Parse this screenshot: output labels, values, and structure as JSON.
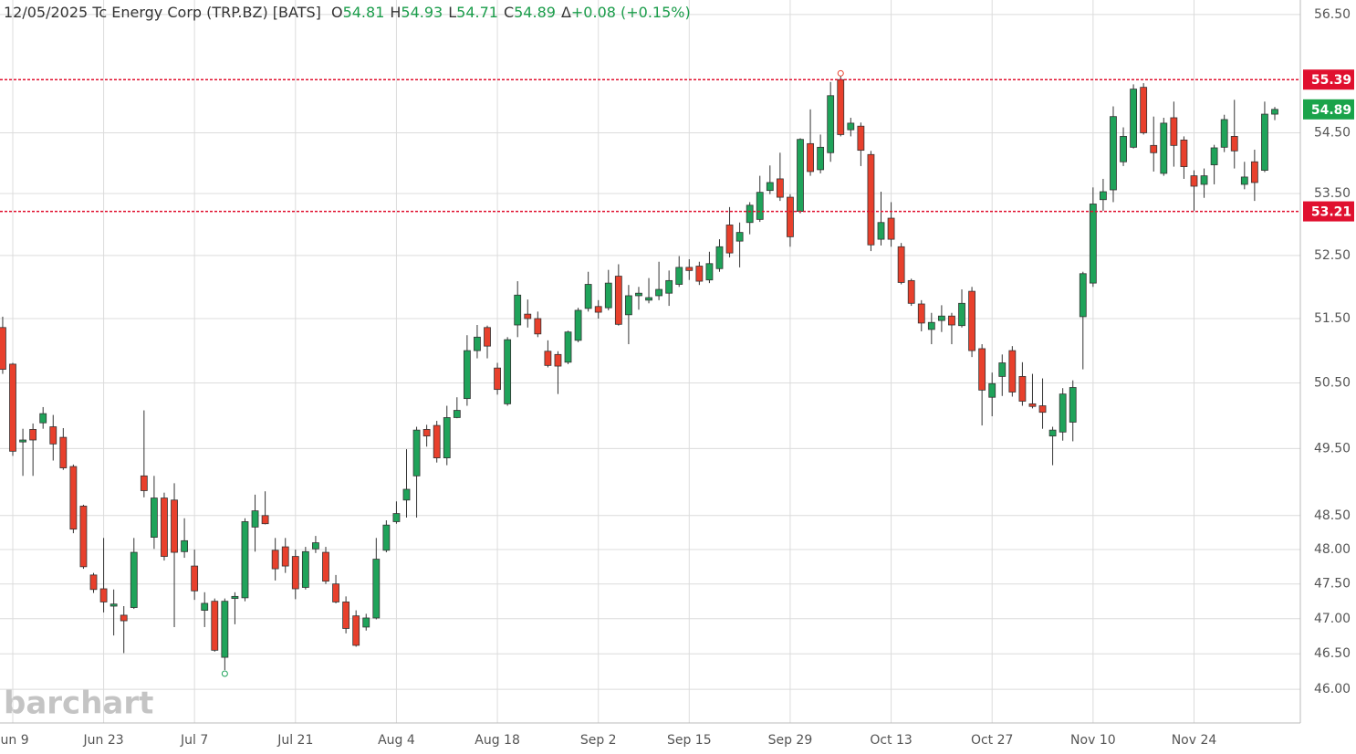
{
  "header": {
    "date": "12/05/2025",
    "name": "Tc Energy Corp (TRP.BZ) [BATS]",
    "fields": [
      {
        "key": "O",
        "value": 54.81
      },
      {
        "key": "H",
        "value": 54.93
      },
      {
        "key": "L",
        "value": 54.71
      },
      {
        "key": "C",
        "value": 54.89
      },
      {
        "key": "Δ",
        "value": "+0.08 (+0.15%)"
      }
    ]
  },
  "watermark": "barchart",
  "chart_data": {
    "type": "candlestick",
    "log_scale": true,
    "grid": true,
    "up_color": "#1fa35a",
    "down_color": "#e8402c",
    "categories": [
      null,
      "Jun 9",
      null,
      null,
      null,
      null,
      null,
      null,
      null,
      null,
      "Jun 23",
      null,
      null,
      null,
      null,
      null,
      null,
      null,
      null,
      "Jul 7",
      null,
      null,
      null,
      null,
      null,
      null,
      null,
      null,
      null,
      "Jul 21",
      null,
      null,
      null,
      null,
      null,
      null,
      null,
      null,
      null,
      "Aug 4",
      null,
      null,
      null,
      null,
      null,
      null,
      null,
      null,
      null,
      "Aug 18",
      null,
      null,
      null,
      null,
      null,
      null,
      null,
      null,
      null,
      "Sep 2",
      null,
      null,
      null,
      null,
      null,
      null,
      null,
      null,
      "Sep 15",
      null,
      null,
      null,
      null,
      null,
      null,
      null,
      null,
      null,
      "Sep 29",
      null,
      null,
      null,
      null,
      null,
      null,
      null,
      null,
      null,
      "Oct 13",
      null,
      null,
      null,
      null,
      null,
      null,
      null,
      null,
      null,
      "Oct 27",
      null,
      null,
      null,
      null,
      null,
      null,
      null,
      null,
      null,
      "Nov 10",
      null,
      null,
      null,
      null,
      null,
      null,
      null,
      null,
      null,
      "Nov 24",
      null,
      null,
      null,
      null,
      null,
      null,
      null,
      null
    ],
    "open": [
      51.36,
      50.79,
      49.6,
      49.79,
      49.89,
      49.83,
      49.67,
      49.23,
      48.64,
      47.63,
      47.43,
      47.18,
      47.05,
      47.16,
      49.09,
      48.18,
      48.76,
      48.73,
      47.97,
      47.76,
      47.12,
      47.25,
      46.45,
      47.29,
      47.3,
      48.33,
      48.5,
      47.99,
      48.04,
      47.9,
      47.45,
      48.01,
      47.96,
      47.5,
      47.24,
      47.04,
      46.88,
      47.01,
      47.99,
      48.41,
      48.73,
      49.09,
      49.79,
      49.85,
      49.36,
      49.97,
      50.26,
      51.0,
      51.36,
      50.73,
      50.18,
      51.4,
      51.57,
      51.5,
      50.99,
      50.94,
      50.82,
      51.16,
      51.66,
      51.69,
      51.67,
      52.17,
      51.56,
      51.86,
      51.79,
      51.86,
      51.9,
      52.04,
      52.31,
      52.33,
      52.11,
      52.29,
      52.99,
      52.73,
      53.03,
      53.08,
      53.55,
      53.74,
      53.44,
      53.21,
      54.32,
      53.89,
      54.17,
      55.39,
      54.55,
      54.61,
      54.14,
      52.76,
      53.1,
      52.64,
      52.1,
      51.73,
      51.33,
      51.47,
      51.54,
      51.39,
      51.93,
      51.03,
      50.28,
      50.6,
      51.0,
      50.6,
      50.18,
      50.15,
      49.69,
      49.75,
      49.9,
      51.53,
      52.06,
      53.4,
      53.56,
      54.02,
      54.26,
      55.26,
      54.29,
      53.83,
      54.75,
      54.38,
      53.79,
      53.65,
      53.97,
      54.26,
      54.44,
      53.65,
      54.02,
      53.88,
      54.81
    ],
    "high": [
      51.53,
      50.81,
      49.8,
      49.88,
      50.13,
      50.01,
      49.81,
      49.26,
      48.66,
      47.66,
      48.17,
      47.42,
      47.18,
      48.17,
      50.08,
      49.09,
      48.84,
      48.98,
      48.46,
      48.0,
      47.38,
      47.29,
      47.29,
      47.38,
      48.46,
      48.81,
      48.86,
      48.17,
      48.17,
      48.0,
      48.04,
      48.2,
      48.04,
      47.63,
      47.32,
      47.12,
      47.07,
      48.17,
      48.43,
      48.71,
      49.49,
      49.83,
      49.86,
      49.92,
      50.15,
      50.28,
      51.24,
      51.4,
      51.39,
      50.81,
      51.21,
      52.09,
      51.8,
      51.61,
      51.16,
      50.99,
      51.31,
      51.67,
      52.24,
      51.79,
      52.27,
      52.36,
      52.03,
      52.0,
      52.14,
      52.4,
      52.26,
      52.49,
      52.44,
      52.4,
      52.56,
      52.76,
      53.28,
      53.03,
      53.36,
      53.79,
      53.96,
      54.17,
      53.49,
      54.41,
      54.89,
      54.47,
      55.35,
      55.45,
      54.75,
      54.67,
      54.2,
      53.53,
      53.36,
      52.7,
      52.13,
      51.79,
      51.59,
      51.71,
      51.59,
      51.96,
      52.0,
      51.1,
      50.66,
      50.94,
      51.07,
      50.82,
      50.64,
      50.57,
      49.83,
      50.42,
      50.54,
      52.24,
      53.6,
      53.74,
      54.94,
      54.59,
      55.31,
      55.33,
      54.77,
      54.75,
      55.02,
      54.44,
      53.88,
      53.91,
      54.3,
      54.8,
      55.05,
      54.02,
      54.22,
      55.02,
      54.93
    ],
    "low": [
      50.64,
      49.39,
      49.09,
      49.09,
      49.8,
      49.32,
      49.18,
      48.24,
      47.72,
      47.37,
      47.09,
      46.76,
      46.51,
      47.14,
      48.77,
      48.01,
      47.84,
      46.88,
      47.88,
      47.27,
      46.88,
      46.53,
      46.27,
      46.92,
      47.25,
      47.97,
      48.37,
      47.55,
      47.66,
      47.28,
      47.42,
      47.95,
      47.5,
      47.22,
      46.79,
      46.6,
      46.83,
      46.99,
      47.96,
      48.38,
      48.47,
      48.47,
      49.53,
      49.29,
      49.25,
      49.96,
      50.15,
      50.88,
      50.88,
      50.32,
      50.15,
      51.21,
      51.36,
      51.21,
      50.74,
      50.33,
      50.79,
      51.13,
      51.61,
      51.5,
      51.63,
      51.39,
      51.1,
      51.64,
      51.74,
      51.79,
      51.7,
      52.0,
      52.11,
      52.03,
      52.06,
      52.24,
      52.47,
      52.31,
      52.84,
      53.04,
      53.49,
      53.38,
      52.64,
      53.18,
      53.79,
      53.83,
      54.02,
      54.44,
      54.44,
      53.95,
      52.57,
      52.66,
      52.64,
      52.04,
      51.7,
      51.3,
      51.1,
      51.29,
      51.1,
      51.36,
      50.9,
      49.85,
      49.99,
      50.3,
      50.29,
      50.15,
      50.11,
      49.8,
      49.25,
      49.62,
      49.61,
      50.71,
      52.0,
      53.22,
      53.36,
      53.95,
      54.24,
      54.47,
      53.86,
      53.79,
      53.94,
      53.74,
      53.22,
      53.43,
      53.65,
      54.18,
      53.91,
      53.57,
      53.38,
      53.85,
      54.71
    ],
    "close": [
      50.71,
      49.46,
      49.63,
      49.63,
      50.03,
      49.57,
      49.21,
      48.3,
      47.75,
      47.42,
      47.24,
      47.21,
      46.97,
      47.96,
      48.87,
      48.76,
      47.9,
      47.96,
      48.13,
      47.4,
      47.22,
      46.55,
      47.25,
      47.32,
      48.41,
      48.57,
      48.38,
      47.72,
      47.76,
      47.43,
      47.97,
      48.1,
      47.54,
      47.24,
      46.86,
      46.62,
      47.01,
      47.86,
      48.36,
      48.53,
      48.89,
      49.78,
      49.69,
      49.36,
      49.97,
      50.08,
      51.0,
      51.21,
      51.07,
      50.4,
      51.17,
      51.87,
      51.5,
      51.26,
      50.77,
      50.76,
      51.29,
      51.63,
      52.04,
      51.6,
      52.06,
      51.41,
      51.86,
      51.9,
      51.83,
      51.96,
      52.1,
      52.31,
      52.26,
      52.09,
      52.37,
      52.64,
      52.54,
      52.87,
      53.31,
      53.52,
      53.68,
      53.44,
      52.8,
      54.39,
      53.86,
      54.26,
      55.12,
      54.47,
      54.66,
      54.21,
      52.67,
      53.03,
      52.76,
      52.07,
      51.74,
      51.43,
      51.44,
      51.54,
      51.4,
      51.74,
      51.0,
      50.39,
      50.49,
      50.81,
      50.36,
      50.22,
      50.14,
      50.05,
      49.78,
      50.33,
      50.43,
      52.21,
      53.33,
      53.53,
      54.77,
      54.44,
      55.23,
      54.5,
      54.17,
      54.66,
      54.29,
      53.94,
      53.62,
      53.79,
      54.25,
      54.72,
      54.2,
      53.77,
      53.68,
      54.81,
      54.89
    ],
    "ylim": [
      45.53,
      56.75
    ],
    "yticks": [
      {
        "value": 46,
        "label": "46.00"
      },
      {
        "value": 46.5,
        "label": "46.50"
      },
      {
        "value": 47,
        "label": "47.00"
      },
      {
        "value": 47.5,
        "label": "47.50"
      },
      {
        "value": 48,
        "label": "48.00"
      },
      {
        "value": 48.5,
        "label": "48.50"
      },
      {
        "value": 49.5,
        "label": "49.50"
      },
      {
        "value": 50.5,
        "label": "50.50"
      },
      {
        "value": 51.5,
        "label": "51.50"
      },
      {
        "value": 52.5,
        "label": "52.50"
      },
      {
        "value": 53.5,
        "label": "53.50"
      },
      {
        "value": 54.5,
        "label": "54.50"
      },
      {
        "value": 56.5,
        "label": "56.50"
      }
    ],
    "price_lines": [
      {
        "value": 55.39,
        "color": "#e0102f"
      },
      {
        "value": 53.21,
        "color": "#e0102f"
      }
    ],
    "last_price": {
      "value": 54.89,
      "color": "#1aa34a"
    }
  }
}
